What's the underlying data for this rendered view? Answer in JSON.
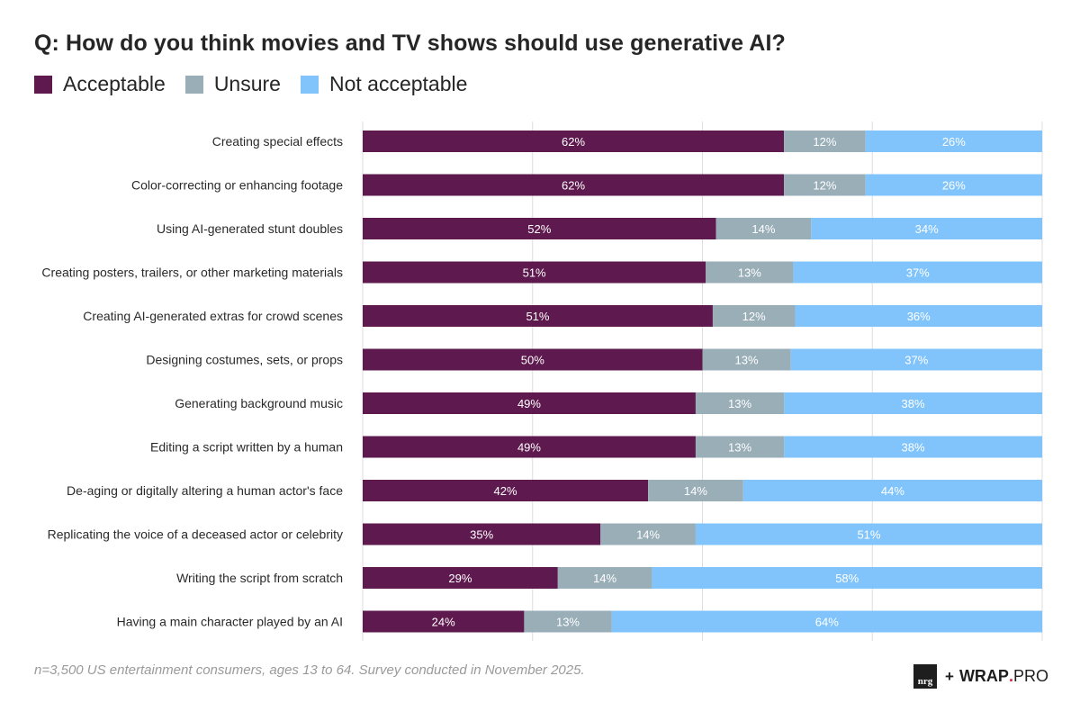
{
  "chart_data": {
    "type": "bar",
    "orientation": "horizontal",
    "stacked": true,
    "title": "Q: How do you think movies and TV shows should use generative AI?",
    "xlabel": "",
    "ylabel": "",
    "xlim": [
      0,
      100
    ],
    "grid": true,
    "gridlines": [
      0,
      25,
      50,
      75,
      100
    ],
    "legend_position": "top-left",
    "categories": [
      "Creating special effects",
      "Color-correcting or enhancing footage",
      "Using AI-generated stunt doubles",
      "Creating posters, trailers, or other marketing materials",
      "Creating AI-generated extras for crowd scenes",
      "Designing costumes, sets, or props",
      "Generating background music",
      "Editing a script written by a human",
      "De-aging or digitally altering a human actor's face",
      "Replicating the voice of a deceased actor or celebrity",
      "Writing the script from scratch",
      "Having a main character played by an AI"
    ],
    "series": [
      {
        "name": "Acceptable",
        "color": "#5e1a4e",
        "values": [
          62,
          62,
          52,
          51,
          51,
          50,
          49,
          49,
          42,
          35,
          29,
          24
        ]
      },
      {
        "name": "Unsure",
        "color": "#9aaeb8",
        "values": [
          12,
          12,
          14,
          13,
          12,
          13,
          13,
          13,
          14,
          14,
          14,
          13
        ]
      },
      {
        "name": "Not acceptable",
        "color": "#80c4fb",
        "values": [
          26,
          26,
          34,
          37,
          36,
          37,
          38,
          38,
          44,
          51,
          58,
          64
        ]
      }
    ],
    "value_suffix": "%"
  },
  "footnote": "n=3,500 US entertainment consumers, ages 13 to 64. Survey conducted in November 2025.",
  "branding": {
    "nrg": "nrg",
    "plus": "+",
    "wrap": "WRAP",
    "dot": ".",
    "pro": "PRO"
  }
}
